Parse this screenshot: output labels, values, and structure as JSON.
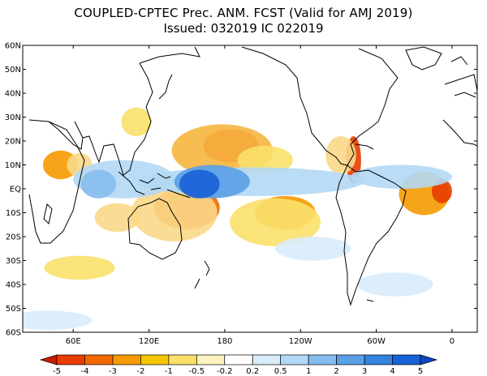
{
  "title": "COUPLED-CPTEC Prec. ANM. FCST  (Valid for AMJ 2019)",
  "subtitle": "Issued:  032019 IC 022019",
  "lat_labels": [
    "60N",
    "50N",
    "40N",
    "30N",
    "20N",
    "10N",
    "EQ",
    "10S",
    "20S",
    "30S",
    "40S",
    "50S",
    "60S"
  ],
  "lon_labels": [
    {
      "label": "60E",
      "lon": 60
    },
    {
      "label": "120E",
      "lon": 120
    },
    {
      "label": "180",
      "lon": 180
    },
    {
      "label": "120W",
      "lon": 240
    },
    {
      "label": "60W",
      "lon": 300
    },
    {
      "label": "0",
      "lon": 360
    }
  ],
  "colorbar": {
    "labels": [
      "-5",
      "-4",
      "-3",
      "-2",
      "-1",
      "-0.5",
      "-0.2",
      "0.2",
      "0.5",
      "1",
      "2",
      "3",
      "4",
      "5"
    ],
    "colors": [
      "#d01a00",
      "#e83c00",
      "#f06a00",
      "#f59a00",
      "#f7c600",
      "#f9e06a",
      "#fcf3bf",
      "#ffffff",
      "#d8ecfb",
      "#b3d8f5",
      "#86bdee",
      "#5aa0e5",
      "#3382de",
      "#1860d6",
      "#0a48c8"
    ]
  },
  "anomalies": [
    {
      "lon": 185,
      "lat": 18,
      "rx": 22,
      "ry": 7,
      "c": "#e83c00"
    },
    {
      "lon": 178,
      "lat": 16,
      "rx": 40,
      "ry": 11,
      "c": "#f6b640"
    },
    {
      "lon": 212,
      "lat": 12,
      "rx": 22,
      "ry": 6,
      "c": "#f9e06a"
    },
    {
      "lon": 155,
      "lat": -9,
      "rx": 14,
      "ry": 6,
      "c": "#d01a00"
    },
    {
      "lon": 150,
      "lat": -8,
      "rx": 26,
      "ry": 9,
      "c": "#f06a00"
    },
    {
      "lon": 140,
      "lat": -10,
      "rx": 34,
      "ry": 12,
      "c": "#f9d88a"
    },
    {
      "lon": 228,
      "lat": -10,
      "rx": 24,
      "ry": 7,
      "c": "#f59a00"
    },
    {
      "lon": 220,
      "lat": -14,
      "rx": 36,
      "ry": 10,
      "c": "#f9e06a"
    },
    {
      "lon": 338,
      "lat": -2,
      "rx": 20,
      "ry": 9,
      "c": "#f59a00"
    },
    {
      "lon": 352,
      "lat": -1,
      "rx": 8,
      "ry": 5,
      "c": "#e83c00"
    },
    {
      "lon": 282,
      "lat": 12,
      "rx": 6,
      "ry": 10,
      "c": "#e83c00"
    },
    {
      "lon": 272,
      "lat": 14,
      "rx": 12,
      "ry": 8,
      "c": "#f9d88a"
    },
    {
      "lon": 50,
      "lat": 10,
      "rx": 14,
      "ry": 6,
      "c": "#f59a00"
    },
    {
      "lon": 65,
      "lat": 10,
      "rx": 10,
      "ry": 5,
      "c": "#f9d88a"
    },
    {
      "lon": 95,
      "lat": -12,
      "rx": 18,
      "ry": 6,
      "c": "#f9d88a"
    },
    {
      "lon": 110,
      "lat": 28,
      "rx": 12,
      "ry": 6,
      "c": "#f9e06a"
    },
    {
      "lon": 65,
      "lat": -33,
      "rx": 28,
      "ry": 5,
      "c": "#f9e06a"
    },
    {
      "lon": 200,
      "lat": 3,
      "rx": 90,
      "ry": 6,
      "c": "#b3d8f5"
    },
    {
      "lon": 170,
      "lat": 3,
      "rx": 30,
      "ry": 7,
      "c": "#5aa0e5"
    },
    {
      "lon": 160,
      "lat": 2,
      "rx": 16,
      "ry": 6,
      "c": "#1860d6"
    },
    {
      "lon": 100,
      "lat": 4,
      "rx": 40,
      "ry": 8,
      "c": "#b3d8f5"
    },
    {
      "lon": 80,
      "lat": 2,
      "rx": 14,
      "ry": 6,
      "c": "#86bdee"
    },
    {
      "lon": 320,
      "lat": 5,
      "rx": 40,
      "ry": 5,
      "c": "#b3d8f5"
    },
    {
      "lon": 315,
      "lat": -40,
      "rx": 30,
      "ry": 5,
      "c": "#d8ecfb"
    },
    {
      "lon": 40,
      "lat": -55,
      "rx": 35,
      "ry": 4,
      "c": "#d8ecfb"
    },
    {
      "lon": 250,
      "lat": -25,
      "rx": 30,
      "ry": 5,
      "c": "#d8ecfb"
    }
  ]
}
